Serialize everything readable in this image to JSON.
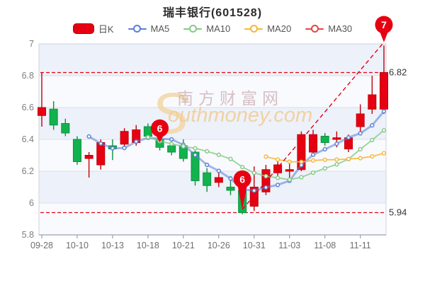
{
  "title": "瑞丰银行(601528)",
  "legend": [
    {
      "label": "日K",
      "color": "#e60012",
      "type": "rect"
    },
    {
      "label": "MA5",
      "color": "#5b7fd6",
      "type": "line"
    },
    {
      "label": "MA10",
      "color": "#85ca85",
      "type": "line"
    },
    {
      "label": "MA20",
      "color": "#f6b73c",
      "type": "line"
    },
    {
      "label": "MA30",
      "color": "#e64545",
      "type": "line"
    }
  ],
  "watermark": {
    "initial": "S",
    "cn": "南方财富网",
    "en": "outhmoney.com"
  },
  "colors": {
    "up": "#e60012",
    "up_border": "#c00008",
    "up_wick": "#c00008",
    "down": "#12b24e",
    "down_border": "#0a9440",
    "down_wick": "#0c8f41",
    "dashed": "#e60012",
    "badge": "#e60012",
    "grid": "#d9dfec",
    "band": "#edf1f9",
    "band_alt": "#f9fafd",
    "axis": "#9aa0ab",
    "tick_text": "#7f7f7f",
    "border": "#ccd3e2"
  },
  "annotations": {
    "hlines": [
      {
        "price": 6.82,
        "label": "6.82"
      },
      {
        "price": 5.94,
        "label": "5.94"
      }
    ],
    "trendline": {
      "from_index": 17,
      "from_price": 5.96,
      "to_index": 29,
      "to_price": 7.01
    },
    "badges": [
      {
        "text": "6",
        "index": 10,
        "center_price": 6.47,
        "tip_price": 6.38
      },
      {
        "text": "6",
        "index": 17,
        "center_price": 6.15,
        "tip_price": 5.96
      },
      {
        "text": "7",
        "index": 29,
        "center_price": 7.12,
        "tip_price": 7.01
      }
    ]
  },
  "chart_data": {
    "type": "candlestick",
    "title": "瑞丰银行(601528)",
    "ylim": [
      5.8,
      7.0
    ],
    "yticks": [
      7,
      6.8,
      6.6,
      6.4,
      6.2,
      6,
      5.8
    ],
    "ytick_labels": [
      "7",
      "6.8",
      "6.6",
      "6.4",
      "6.2",
      "6",
      "5.8"
    ],
    "xtick_labels": [
      "09-28",
      "10-10",
      "10-13",
      "10-18",
      "10-21",
      "10-26",
      "10-31",
      "11-03",
      "11-08",
      "11-11"
    ],
    "xtick_every": 3,
    "grid": true,
    "legend_position": "top",
    "dates": [
      "09-28",
      "09-29",
      "09-30",
      "10-10",
      "10-11",
      "10-12",
      "10-13",
      "10-14",
      "10-17",
      "10-18",
      "10-19",
      "10-20",
      "10-21",
      "10-24",
      "10-25",
      "10-26",
      "10-27",
      "10-28",
      "10-31",
      "11-01",
      "11-02",
      "11-03",
      "11-04",
      "11-07",
      "11-08",
      "11-09",
      "11-10",
      "11-11",
      "11-14",
      "11-15"
    ],
    "candles": [
      {
        "date": "09-28",
        "open": 6.55,
        "high": 6.82,
        "low": 6.48,
        "close": 6.6
      },
      {
        "date": "09-29",
        "open": 6.59,
        "high": 6.64,
        "low": 6.46,
        "close": 6.49
      },
      {
        "date": "09-30",
        "open": 6.5,
        "high": 6.53,
        "low": 6.42,
        "close": 6.44
      },
      {
        "date": "10-10",
        "open": 6.4,
        "high": 6.42,
        "low": 6.24,
        "close": 6.26
      },
      {
        "date": "10-11",
        "open": 6.28,
        "high": 6.32,
        "low": 6.16,
        "close": 6.3
      },
      {
        "date": "10-12",
        "open": 6.24,
        "high": 6.4,
        "low": 6.21,
        "close": 6.38
      },
      {
        "date": "10-13",
        "open": 6.36,
        "high": 6.4,
        "low": 6.27,
        "close": 6.34
      },
      {
        "date": "10-14",
        "open": 6.37,
        "high": 6.47,
        "low": 6.35,
        "close": 6.45
      },
      {
        "date": "10-17",
        "open": 6.38,
        "high": 6.49,
        "low": 6.36,
        "close": 6.46
      },
      {
        "date": "10-18",
        "open": 6.48,
        "high": 6.5,
        "low": 6.4,
        "close": 6.42
      },
      {
        "date": "10-19",
        "open": 6.4,
        "high": 6.42,
        "low": 6.33,
        "close": 6.35
      },
      {
        "date": "10-20",
        "open": 6.36,
        "high": 6.38,
        "low": 6.3,
        "close": 6.32
      },
      {
        "date": "10-21",
        "open": 6.36,
        "high": 6.4,
        "low": 6.26,
        "close": 6.28
      },
      {
        "date": "10-24",
        "open": 6.32,
        "high": 6.33,
        "low": 6.11,
        "close": 6.14
      },
      {
        "date": "10-25",
        "open": 6.19,
        "high": 6.22,
        "low": 6.07,
        "close": 6.11
      },
      {
        "date": "10-26",
        "open": 6.13,
        "high": 6.19,
        "low": 6.1,
        "close": 6.16
      },
      {
        "date": "10-27",
        "open": 6.1,
        "high": 6.17,
        "low": 6.05,
        "close": 6.08
      },
      {
        "date": "10-28",
        "open": 6.08,
        "high": 6.09,
        "low": 5.93,
        "close": 5.94
      },
      {
        "date": "10-31",
        "open": 5.98,
        "high": 6.23,
        "low": 5.95,
        "close": 6.1
      },
      {
        "date": "11-01",
        "open": 6.07,
        "high": 6.24,
        "low": 6.05,
        "close": 6.21
      },
      {
        "date": "11-02",
        "open": 6.19,
        "high": 6.26,
        "low": 6.17,
        "close": 6.24
      },
      {
        "date": "11-03",
        "open": 6.2,
        "high": 6.25,
        "low": 6.16,
        "close": 6.21
      },
      {
        "date": "11-04",
        "open": 6.21,
        "high": 6.45,
        "low": 6.2,
        "close": 6.43
      },
      {
        "date": "11-07",
        "open": 6.32,
        "high": 6.46,
        "low": 6.3,
        "close": 6.43
      },
      {
        "date": "11-08",
        "open": 6.42,
        "high": 6.44,
        "low": 6.36,
        "close": 6.38
      },
      {
        "date": "11-09",
        "open": 6.4,
        "high": 6.45,
        "low": 6.35,
        "close": 6.41
      },
      {
        "date": "11-10",
        "open": 6.34,
        "high": 6.43,
        "low": 6.32,
        "close": 6.41
      },
      {
        "date": "11-11",
        "open": 6.48,
        "high": 6.62,
        "low": 6.43,
        "close": 6.56
      },
      {
        "date": "11-14",
        "open": 6.59,
        "high": 6.8,
        "low": 6.56,
        "close": 6.68
      },
      {
        "date": "11-15",
        "open": 6.59,
        "high": 6.99,
        "low": 6.56,
        "close": 6.82
      }
    ],
    "ma": [
      {
        "name": "MA5",
        "window": 5,
        "color": "#5b7fd6",
        "width": 3,
        "opacity": 0.55
      },
      {
        "name": "MA10",
        "window": 10,
        "color": "#85ca85",
        "width": 1.8,
        "opacity": 0.85
      },
      {
        "name": "MA20",
        "window": 20,
        "color": "#f6b73c",
        "width": 1.8,
        "opacity": 0.9
      },
      {
        "name": "MA30",
        "window": 30,
        "color": "#e64545",
        "width": 1.8,
        "opacity": 0.9
      }
    ]
  }
}
